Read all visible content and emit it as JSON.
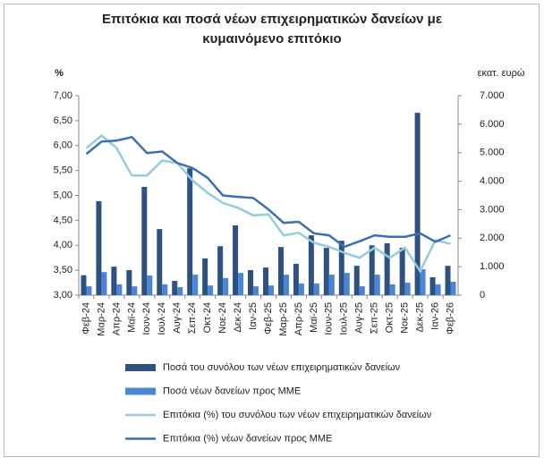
{
  "chart_data": {
    "type": "combo",
    "title": [
      "Επιτόκια και ποσά νέων επιχειρηματικών δανείων με",
      "κυμαινόμενο επιτόκιο"
    ],
    "y_label": "%",
    "y2_label": "εκατ. ευρώ",
    "categories": [
      "Φεβ-24",
      "Μαρ-24",
      "Απρ-24",
      "Μαϊ-24",
      "Ιουν-24",
      "Ιουλ-24",
      "Αυγ-24",
      "Σεπ-24",
      "Οκτ-24",
      "Νοε-24",
      "Δεκ-24",
      "Ιαν-25",
      "Φεβ-25",
      "Μαρ-25",
      "Απρ-25",
      "Μαϊ-25",
      "Ιουν-25",
      "Ιουλ-25",
      "Αυγ-25",
      "Σεπ-25",
      "Οκτ-25",
      "Νοε-25",
      "Δεκ-25",
      "Ιαν-26",
      "Φεβ-26"
    ],
    "ylim": [
      3,
      7
    ],
    "yticks": [
      {
        "value": 3,
        "label": "3,00"
      },
      {
        "value": 3.5,
        "label": "3,50"
      },
      {
        "value": 4,
        "label": "4,00"
      },
      {
        "value": 4.5,
        "label": "4,50"
      },
      {
        "value": 5,
        "label": "5,00"
      },
      {
        "value": 5.5,
        "label": "5,50"
      },
      {
        "value": 6,
        "label": "6,00"
      },
      {
        "value": 6.5,
        "label": "6,50"
      },
      {
        "value": 7,
        "label": "7,00"
      }
    ],
    "y2lim": [
      0,
      7000
    ],
    "y2ticks": [
      0,
      {
        "value": 1000,
        "label": "1.000"
      },
      {
        "value": 2000,
        "label": "2.000"
      },
      {
        "value": 3000,
        "label": "3.000"
      },
      {
        "value": 4000,
        "label": "4.000"
      },
      {
        "value": 5000,
        "label": "5.000"
      },
      {
        "value": 6000,
        "label": "6.000"
      },
      {
        "value": 7000,
        "label": "7.000"
      }
    ],
    "series": [
      {
        "name": "Ποσά του συνόλου των νέων επιχειρηματικών δανείων",
        "type": "bar",
        "axis": "y2",
        "color": "#2f5180",
        "values": [
          700,
          3300,
          1000,
          880,
          3800,
          2320,
          500,
          4450,
          1290,
          1720,
          2450,
          880,
          970,
          1690,
          1100,
          2100,
          1660,
          1910,
          1030,
          1750,
          1820,
          1660,
          6400,
          630,
          1030
        ]
      },
      {
        "name": "Ποσά νέων δανείων προς ΜΜΕ",
        "type": "bar",
        "axis": "y2",
        "color": "#4a86d4",
        "values": [
          310,
          810,
          380,
          310,
          690,
          380,
          280,
          720,
          340,
          600,
          780,
          310,
          340,
          720,
          410,
          410,
          720,
          780,
          310,
          720,
          380,
          440,
          910,
          380,
          470
        ]
      },
      {
        "name": "Επιτόκια (%) του συνόλου των νέων επιχειρηματικών δανείων",
        "type": "line",
        "color": "#92cddc",
        "values": [
          5.95,
          6.2,
          5.95,
          5.4,
          5.4,
          5.7,
          5.65,
          5.3,
          5.05,
          4.85,
          4.75,
          4.6,
          4.62,
          4.2,
          4.25,
          4.05,
          3.97,
          3.85,
          3.75,
          3.95,
          3.75,
          3.95,
          3.48,
          4.1,
          4.03
        ]
      },
      {
        "name": "Επιτόκια (%) νέων δανείων προς ΜΜΕ",
        "type": "line",
        "color": "#3a6fb5",
        "values": [
          5.83,
          6.08,
          6.1,
          6.17,
          5.85,
          5.88,
          5.65,
          5.55,
          5.35,
          5.0,
          4.97,
          4.95,
          4.72,
          4.45,
          4.47,
          4.24,
          4.2,
          3.97,
          4.08,
          4.2,
          4.17,
          4.17,
          4.24,
          4.07,
          4.2
        ]
      }
    ]
  }
}
